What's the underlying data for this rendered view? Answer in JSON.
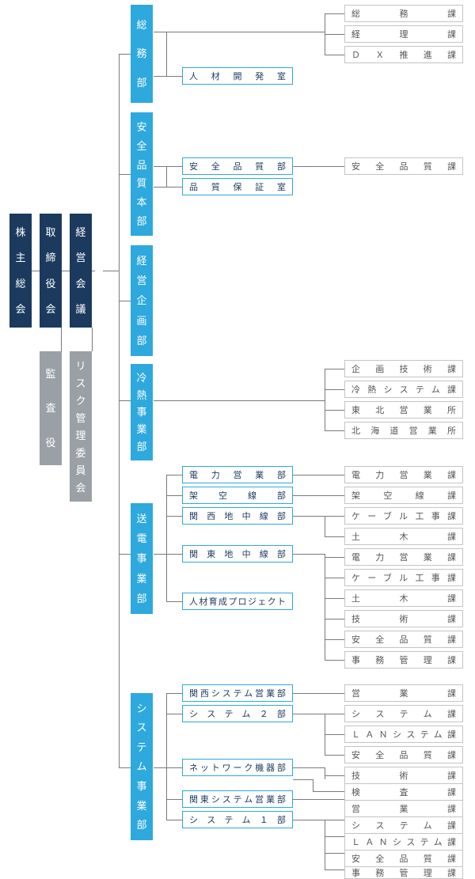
{
  "type": "tree",
  "background_color": "#ffffff",
  "line_color": "#7a7a7a",
  "palette": {
    "navy": {
      "fill": "#1b3a5e",
      "text": "#ffffff"
    },
    "cyan": {
      "fill": "#2ea9dd",
      "text": "#ffffff"
    },
    "grey": {
      "fill": "#9aa0a6",
      "text": "#ffffff"
    },
    "cyan_outline": {
      "fill": "#ffffff",
      "border": "#2ea9dd",
      "text": "#1b3a5e"
    },
    "grey_outline": {
      "fill": "#ffffff",
      "border": "#c4c4c4",
      "text": "#555555"
    }
  },
  "font": {
    "family": "Hiragino Kaku Gothic ProN",
    "vbox_size": 13,
    "hbox_size": 11
  },
  "root": {
    "shareholders": {
      "label": "株主総会",
      "style": "navy"
    },
    "board": {
      "label": "取締役会",
      "style": "navy"
    },
    "exec_meeting": {
      "label": "経営会議",
      "style": "navy"
    },
    "auditor": {
      "label": "監査役",
      "style": "grey"
    },
    "risk_committee": {
      "label": "リスク管理委員会",
      "style": "grey"
    }
  },
  "depts": [
    {
      "id": "soumu",
      "label": "総務部",
      "style": "cyan"
    },
    {
      "id": "anzen",
      "label": "安全品質本部",
      "style": "cyan"
    },
    {
      "id": "keiei",
      "label": "経営企画部",
      "style": "cyan"
    },
    {
      "id": "reinetsu",
      "label": "冷熱事業部",
      "style": "cyan"
    },
    {
      "id": "souden",
      "label": "送電事業部",
      "style": "cyan"
    },
    {
      "id": "system",
      "label": "システム事業部",
      "style": "cyan"
    }
  ],
  "mids": {
    "soumu": {
      "jinzai": "人材開発室"
    },
    "anzen": {
      "anzenbu": "安全品質部",
      "hinshitsu": "品質保証室"
    },
    "souden": {
      "denryoku_eigyo": "電力営業部",
      "kakuusen": "架空線部",
      "kansai_chichu": "関西地中線部",
      "kanto_chichu": "関東地中線部",
      "jinzai_pj": "人材育成プロジェクト"
    },
    "system": {
      "kansai_sys": "関西システム営業部",
      "sys2": "システム２部",
      "network": "ネットワーク機器部",
      "kanto_sys": "関東システム営業部",
      "sys1": "システム１部"
    }
  },
  "leaves": {
    "soumu": [
      "総務課",
      "経理課",
      "ＤＸ推進課"
    ],
    "anzen": [
      "安全品質課"
    ],
    "reinetsu": [
      "企画技術課",
      "冷熱システム課",
      "東北営業所",
      "北海道営業所"
    ],
    "souden_denryoku": [
      "電力営業課"
    ],
    "souden_kakuu": [
      "架空線課"
    ],
    "souden_kansai": [
      "ケーブル工事課",
      "土木課"
    ],
    "souden_kanto": [
      "電力営業課",
      "ケーブル工事課",
      "土木課",
      "技術課",
      "安全品質課",
      "事務管理課"
    ],
    "system_kansai": [
      "営業課"
    ],
    "system_sys2": [
      "システム課",
      "ＬＡＮシステム課",
      "安全品質課"
    ],
    "system_network": [
      "技術課",
      "検査課"
    ],
    "system_kanto": [
      "営業課"
    ],
    "system_sys1": [
      "システム課",
      "ＬＡＮシステム課",
      "安全品質課",
      "事務管理課"
    ]
  }
}
